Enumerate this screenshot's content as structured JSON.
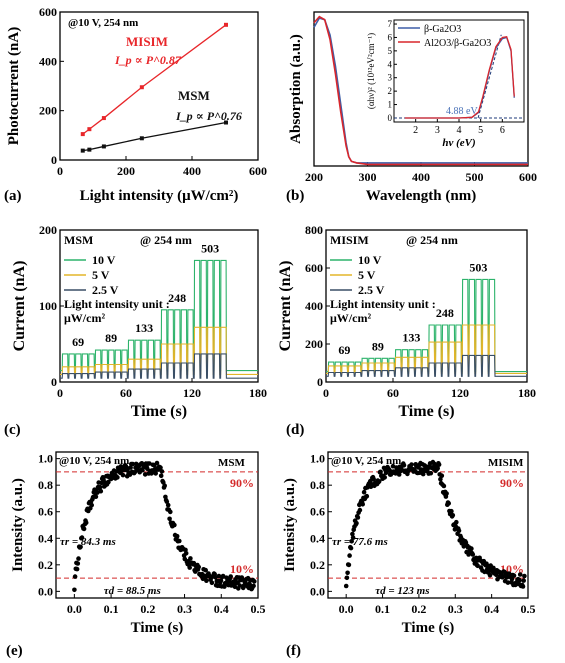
{
  "chart_data": [
    {
      "panel": "(a)",
      "type": "line",
      "annotation": "@10 V, 254 nm",
      "xlabel": "Light intensity (μW/cm²)",
      "ylabel": "Photocurrent (nA)",
      "xlim": [
        0,
        600
      ],
      "ylim": [
        0,
        600
      ],
      "xticks": [
        "0",
        "200",
        "400",
        "600"
      ],
      "yticks": [
        "0",
        "200",
        "400",
        "600"
      ],
      "series": [
        {
          "name": "MISIM",
          "formula": "I_p ∝ P^0.87",
          "color": "#e8262a",
          "x": [
            69,
            89,
            133,
            248,
            503
          ],
          "y": [
            105,
            125,
            170,
            295,
            548
          ]
        },
        {
          "name": "MSM",
          "formula": "I_p ∝ P^0.76",
          "color": "#111111",
          "x": [
            69,
            89,
            133,
            248,
            503
          ],
          "y": [
            38,
            42,
            55,
            88,
            152
          ]
        }
      ]
    },
    {
      "panel": "(b)",
      "type": "line",
      "xlabel": "Wavelength (nm)",
      "ylabel": "Absorption (a.u.)",
      "xlim": [
        200,
        600
      ],
      "xticks": [
        "200",
        "300",
        "400",
        "500",
        "600"
      ],
      "series": [
        {
          "name": "β-Ga2O3",
          "color": "#3f5fa8",
          "x": [
            200,
            210,
            220,
            230,
            240,
            250,
            260,
            265,
            270,
            280,
            300,
            350,
            400,
            450,
            500,
            550,
            600
          ],
          "y": [
            0.9,
            0.96,
            0.95,
            0.85,
            0.65,
            0.4,
            0.15,
            0.06,
            0.03,
            0.02,
            0.02,
            0.02,
            0.02,
            0.02,
            0.02,
            0.02,
            0.02
          ]
        },
        {
          "name": "Al2O3/β-Ga2O3",
          "color": "#d9262c",
          "x": [
            200,
            210,
            220,
            230,
            240,
            250,
            260,
            265,
            270,
            280,
            300,
            350,
            400,
            450,
            500,
            550,
            600
          ],
          "y": [
            0.93,
            0.97,
            0.95,
            0.82,
            0.6,
            0.35,
            0.13,
            0.06,
            0.03,
            0.02,
            0.01,
            0.01,
            0.01,
            0.01,
            0.01,
            0.01,
            0.01
          ]
        }
      ],
      "inset": {
        "xlabel": "hν (eV)",
        "ylabel": "(αhν)² (10¹²eV²cm⁻¹)",
        "xlim": [
          1,
          7
        ],
        "xticks": [
          "2",
          "3",
          "4",
          "5",
          "6"
        ],
        "yticks": [
          "0",
          "1",
          "2",
          "3",
          "4",
          "5",
          "6",
          "7"
        ],
        "annotation": "4.88 eV",
        "series": [
          {
            "name": "β-Ga2O3",
            "x": [
              1.5,
              2,
              3,
              4,
              4.6,
              4.9,
              5.1,
              5.4,
              5.7,
              6.0,
              6.2,
              6.4,
              6.55
            ],
            "y": [
              0.0,
              0.0,
              0.0,
              0.0,
              0.05,
              0.4,
              1.5,
              3.5,
              5.2,
              5.9,
              6.0,
              5.0,
              1.5
            ]
          },
          {
            "name": "Al2O3/β-Ga2O3",
            "x": [
              1.5,
              2,
              3,
              4,
              4.6,
              4.9,
              5.1,
              5.4,
              5.7,
              6.0,
              6.2,
              6.4,
              6.55
            ],
            "y": [
              0.0,
              0.0,
              0.0,
              0.0,
              0.05,
              0.45,
              1.6,
              3.6,
              5.3,
              6.0,
              6.05,
              5.1,
              1.6
            ]
          }
        ]
      }
    },
    {
      "panel": "(c)",
      "type": "line",
      "label": "MSM",
      "annotation": "@ 254 nm",
      "note_lines": [
        "Light intensity unit :",
        "μW/cm²"
      ],
      "xlabel": "Time (s)",
      "ylabel": "Current (nA)",
      "xlim": [
        0,
        180
      ],
      "ylim": [
        0,
        200
      ],
      "xticks": [
        "0",
        "60",
        "120",
        "180"
      ],
      "yticks": [
        "0",
        "100",
        "200"
      ],
      "intensity_labels": [
        "69",
        "89",
        "133",
        "248",
        "503"
      ],
      "cycle": {
        "period_s": 6,
        "on_s": 5,
        "pulses_per_intensity": 5,
        "group_start_s": [
          2,
          32,
          62,
          92,
          122
        ]
      },
      "series": [
        {
          "name": "10 V",
          "color": "#2db36b",
          "dark": 15,
          "on_levels": [
            37,
            42,
            55,
            95,
            160
          ]
        },
        {
          "name": "5 V",
          "color": "#e3b52a",
          "dark": 10,
          "on_levels": [
            20,
            23,
            30,
            50,
            72
          ]
        },
        {
          "name": "2.5 V",
          "color": "#3a4f66",
          "dark": 5,
          "on_levels": [
            11,
            13,
            17,
            25,
            37
          ]
        }
      ]
    },
    {
      "panel": "(d)",
      "type": "line",
      "label": "MISIM",
      "annotation": "@ 254 nm",
      "note_lines": [
        "Light intensity unit :",
        "μW/cm²"
      ],
      "xlabel": "Time (s)",
      "ylabel": "Current (nA)",
      "xlim": [
        0,
        180
      ],
      "ylim": [
        0,
        800
      ],
      "xticks": [
        "0",
        "60",
        "120",
        "180"
      ],
      "yticks": [
        "0",
        "200",
        "400",
        "600",
        "800"
      ],
      "intensity_labels": [
        "69",
        "89",
        "133",
        "248",
        "503"
      ],
      "cycle": {
        "period_s": 6,
        "on_s": 5,
        "pulses_per_intensity": 5,
        "group_start_s": [
          2,
          32,
          62,
          92,
          122
        ]
      },
      "series": [
        {
          "name": "10 V",
          "color": "#2db36b",
          "dark": 55,
          "on_levels": [
            105,
            125,
            170,
            300,
            540
          ]
        },
        {
          "name": "5 V",
          "color": "#e3b52a",
          "dark": 45,
          "on_levels": [
            85,
            100,
            130,
            210,
            300
          ]
        },
        {
          "name": "2.5 V",
          "color": "#3a4f66",
          "dark": 30,
          "on_levels": [
            50,
            60,
            75,
            100,
            140
          ]
        }
      ]
    },
    {
      "panel": "(e)",
      "type": "scatter",
      "label": "MSM",
      "annotation": "@10 V, 254 nm",
      "xlabel": "Time (s)",
      "ylabel": "Intensity (a.u.)",
      "xlim": [
        -0.05,
        0.5
      ],
      "ylim": [
        -0.05,
        1.05
      ],
      "xticks": [
        "0.0",
        "0.1",
        "0.2",
        "0.3",
        "0.4",
        "0.5"
      ],
      "yticks": [
        "0.0",
        "0.2",
        "0.4",
        "0.6",
        "0.8",
        "1.0"
      ],
      "thresholds": [
        {
          "value": 0.9,
          "label": "90%"
        },
        {
          "value": 0.1,
          "label": "10%"
        }
      ],
      "rise_label": "τr = 84.3 ms",
      "decay_label": "τd = 88.5 ms",
      "on_end_s": 0.235,
      "rise_tau_s": 0.0843,
      "decay_tau_s": 0.0885,
      "point_count": 260
    },
    {
      "panel": "(f)",
      "type": "scatter",
      "label": "MISIM",
      "annotation": "@10 V, 254 nm",
      "xlabel": "Time (s)",
      "ylabel": "Intensity (a.u.)",
      "xlim": [
        -0.05,
        0.5
      ],
      "ylim": [
        -0.05,
        1.05
      ],
      "xticks": [
        "0.0",
        "0.1",
        "0.2",
        "0.3",
        "0.4",
        "0.5"
      ],
      "yticks": [
        "0.0",
        "0.2",
        "0.4",
        "0.6",
        "0.8",
        "1.0"
      ],
      "thresholds": [
        {
          "value": 0.9,
          "label": "90%"
        },
        {
          "value": 0.1,
          "label": "10%"
        }
      ],
      "rise_label": "τr = 77.6 ms",
      "decay_label": "τd = 123 ms",
      "on_end_s": 0.255,
      "rise_tau_s": 0.0776,
      "decay_tau_s": 0.123,
      "point_count": 260
    }
  ]
}
